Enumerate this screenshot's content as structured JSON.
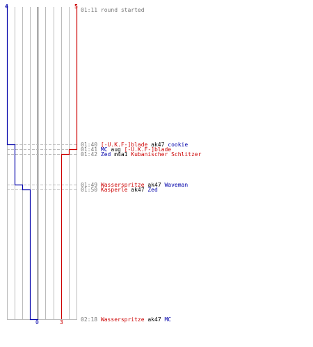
{
  "colors": {
    "team_blue": "#0000aa",
    "team_red": "#cc0000",
    "grid": "#bbbbbb",
    "center": "#666666",
    "dash": "#bbbbbb",
    "time": "#777777",
    "weapon": "#000000"
  },
  "chart_data": {
    "type": "line",
    "title": "",
    "xlabel": "",
    "ylabel": "",
    "series": [
      {
        "name": "",
        "team": "blue",
        "start_count": 4,
        "end_count": 0,
        "steps": [
          {
            "time": "01:40",
            "players_alive": 3
          },
          {
            "time": "01:49",
            "players_alive": 2
          },
          {
            "time": "01:50",
            "players_alive": 1
          },
          {
            "time": "02:18",
            "players_alive": 0
          }
        ]
      },
      {
        "name": "",
        "team": "red",
        "start_count": 5,
        "end_count": 3,
        "steps": [
          {
            "time": "01:41",
            "players_alive": 4
          },
          {
            "time": "01:42",
            "players_alive": 3
          }
        ]
      }
    ],
    "top_labels": {
      "left": "4",
      "right": "5"
    },
    "bottom_labels": {
      "left": "0",
      "right": "3"
    }
  },
  "events": [
    {
      "time": "01:11",
      "parts": [
        {
          "text": "round started",
          "color": "#777777"
        }
      ]
    },
    {
      "time": "01:40",
      "parts": [
        {
          "text": "[-U.K.F-]blade",
          "color": "#cc0000"
        },
        {
          "text": " ak47 ",
          "color": "#000000"
        },
        {
          "text": "cookie",
          "color": "#0000aa"
        }
      ]
    },
    {
      "time": "01:41",
      "parts": [
        {
          "text": "MC",
          "color": "#0000aa"
        },
        {
          "text": " aug ",
          "color": "#000000"
        },
        {
          "text": "[-U.K.F-]blade",
          "color": "#cc0000"
        }
      ]
    },
    {
      "time": "01:42",
      "parts": [
        {
          "text": "Zed",
          "color": "#0000aa"
        },
        {
          "text": " m4a1 ",
          "color": "#000000"
        },
        {
          "text": "Kubanischer Schlitzer",
          "color": "#cc0000"
        }
      ]
    },
    {
      "time": "01:49",
      "parts": [
        {
          "text": "Wasserspritze",
          "color": "#cc0000"
        },
        {
          "text": " ak47 ",
          "color": "#000000"
        },
        {
          "text": "Waveman",
          "color": "#0000aa"
        }
      ]
    },
    {
      "time": "01:50",
      "parts": [
        {
          "text": "Kasperle",
          "color": "#cc0000"
        },
        {
          "text": " ak47 ",
          "color": "#000000"
        },
        {
          "text": "Zed",
          "color": "#0000aa"
        }
      ]
    },
    {
      "time": "02:18",
      "parts": [
        {
          "text": "Wasserspritze",
          "color": "#cc0000"
        },
        {
          "text": " ak47 ",
          "color": "#000000"
        },
        {
          "text": "MC",
          "color": "#0000aa"
        }
      ]
    }
  ]
}
